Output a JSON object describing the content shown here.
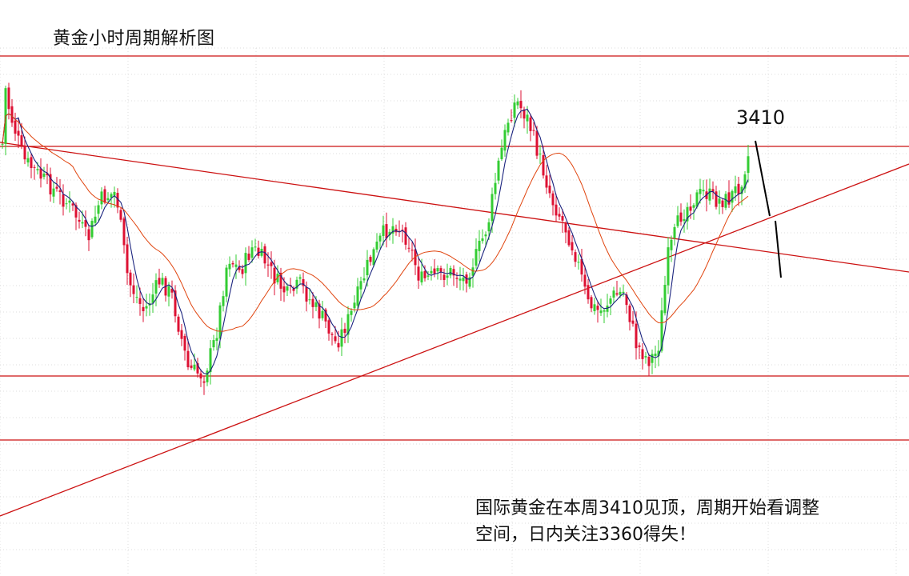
{
  "title": "黄金小时周期解析图",
  "peak_label": "3410",
  "note": {
    "line1": "国际黄金在本周3410见顶，周期开始看调整",
    "line2": "空间，日内关注3360得失！"
  },
  "colors": {
    "background": "#ffffff",
    "grid": "#dcdcdc",
    "up_candle": "#33cc33",
    "down_candle": "#dd1133",
    "level_lines": "#cc1111",
    "trend_lines": "#cc1111",
    "fast_ma": "#1a237e",
    "slow_ma": "#e0440e",
    "projection": "#000000"
  },
  "chart_data": {
    "type": "candlestick",
    "instrument": "gold, hourly",
    "peak": 3410,
    "watch_level": 3360,
    "horizontal_levels": 4,
    "trendlines": [
      "descending resistance",
      "ascending support"
    ],
    "moving_averages": [
      "fast",
      "slow"
    ],
    "projection": "downward adjustment after the 3410 peak",
    "grid": true
  }
}
